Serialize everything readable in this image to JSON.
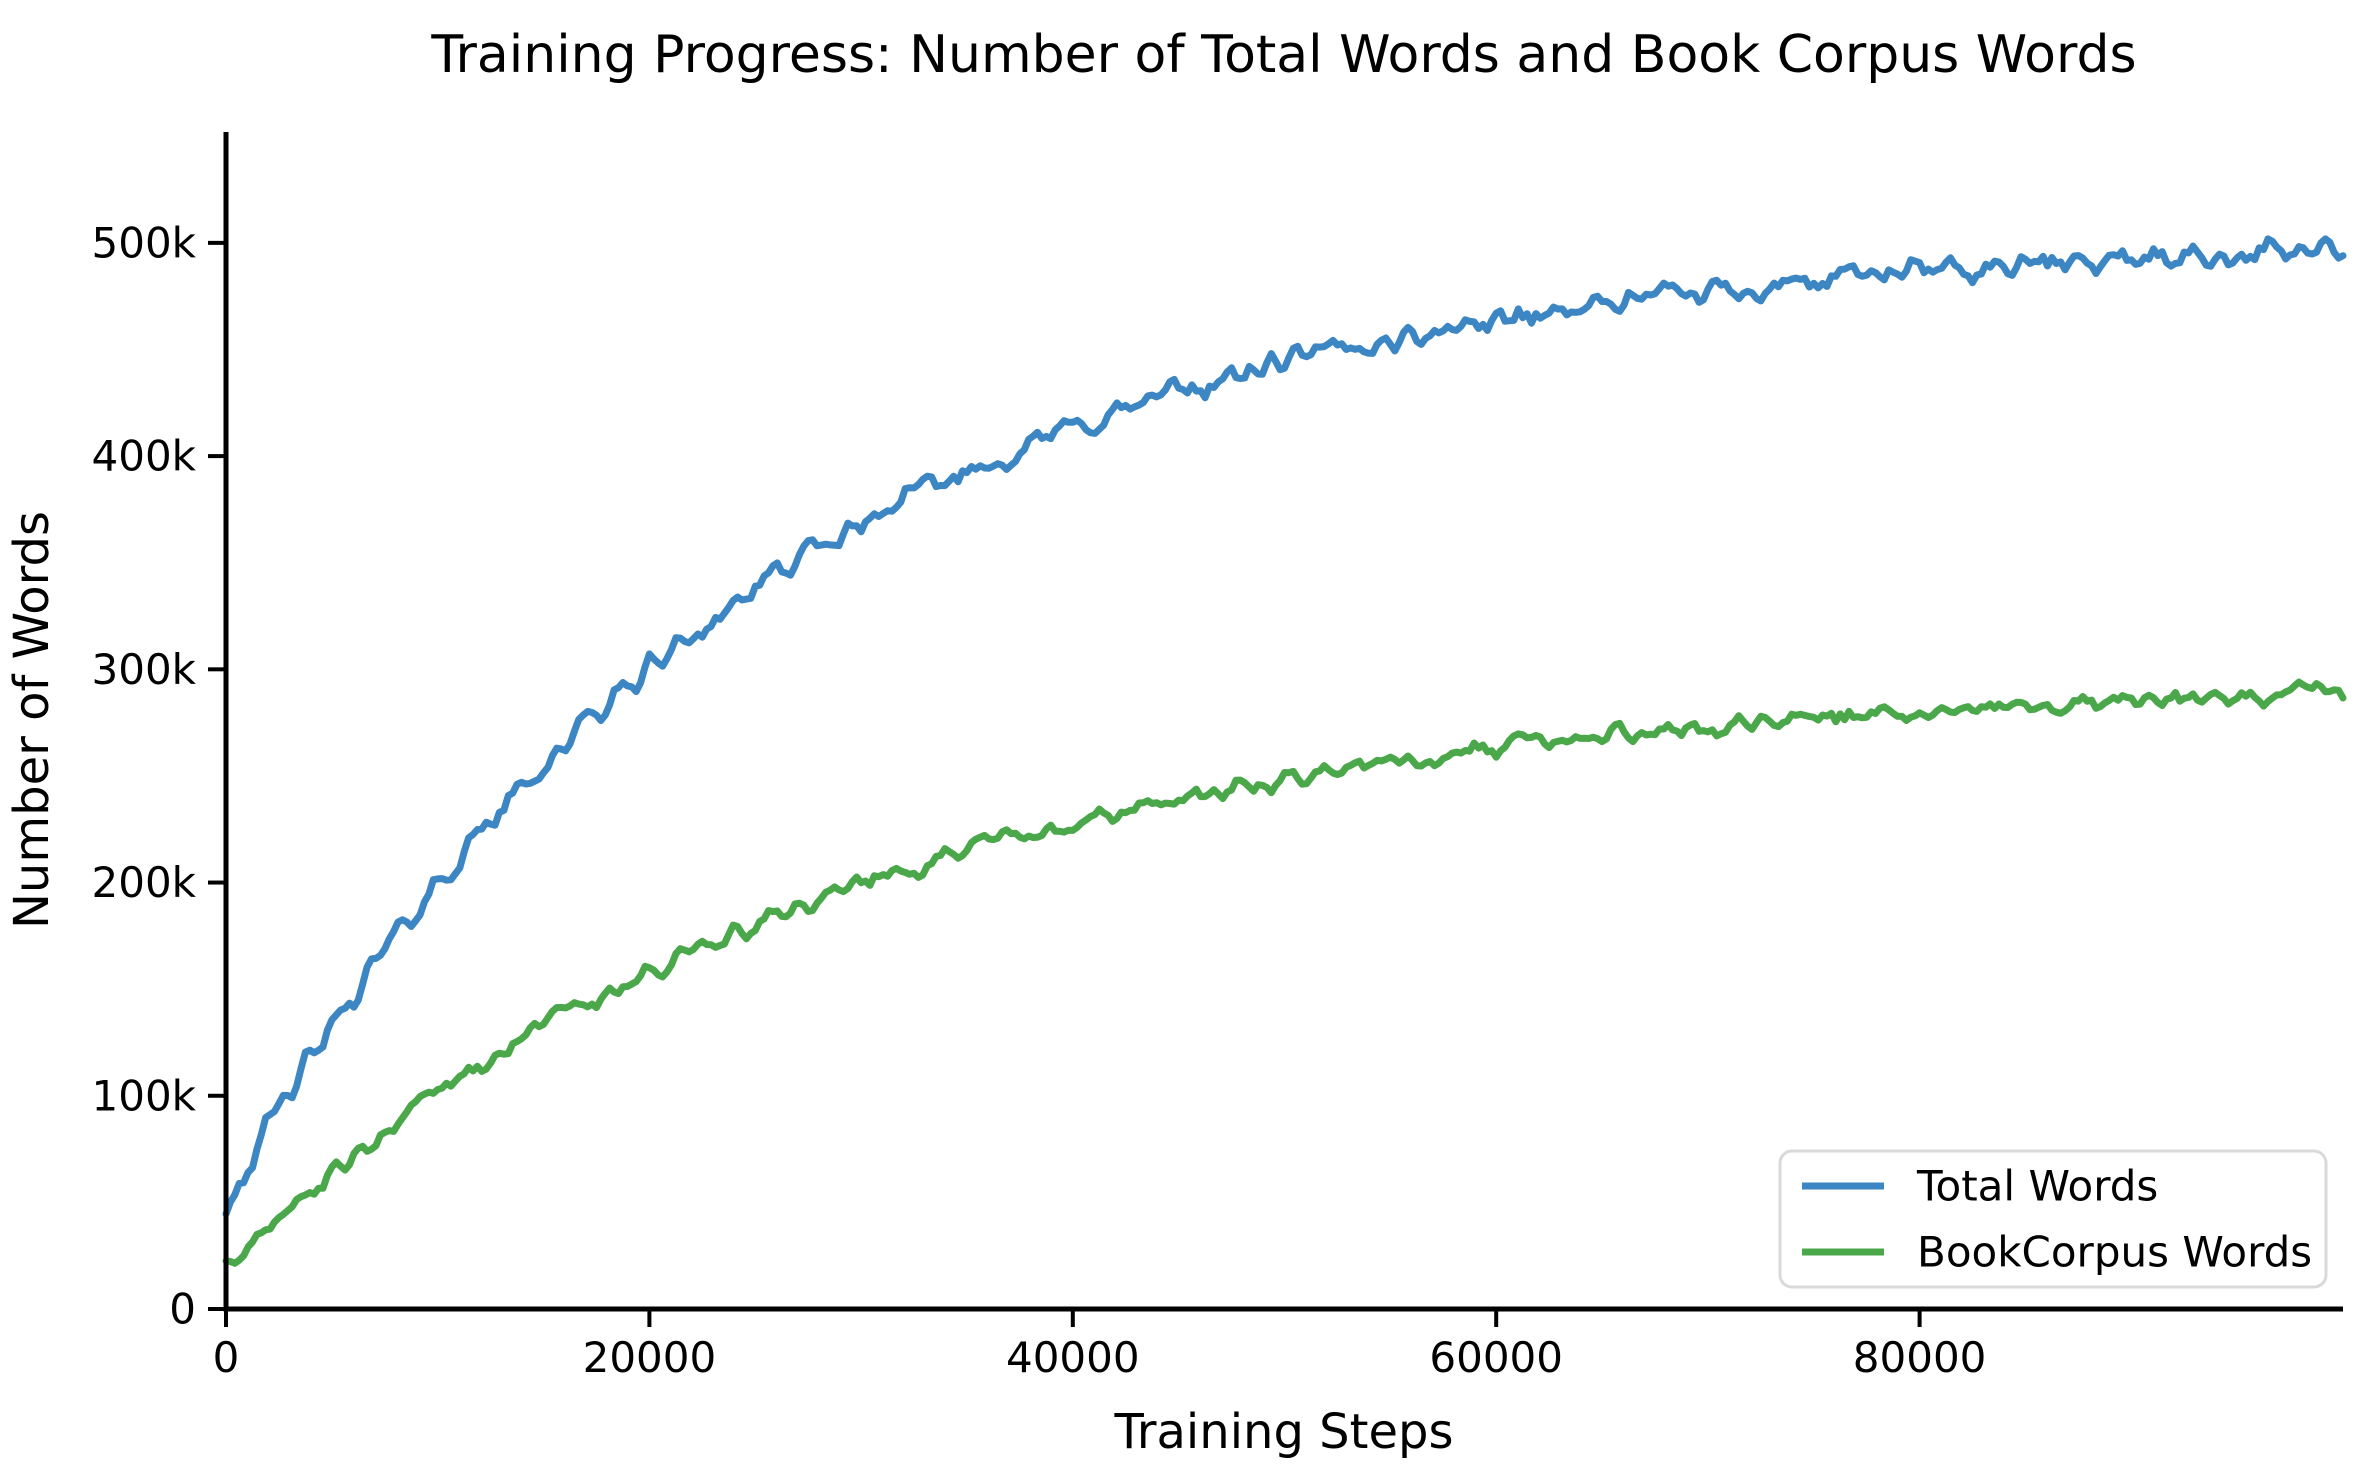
{
  "chart_data": {
    "type": "line",
    "title": "Training Progress: Number of Total Words and Book Corpus Words",
    "xlabel": "Training Steps",
    "ylabel": "Number of Words",
    "xlim": [
      0,
      100000
    ],
    "ylim": [
      0,
      552000
    ],
    "x_ticks": [
      {
        "value": 0,
        "label": "0"
      },
      {
        "value": 20000,
        "label": "20000"
      },
      {
        "value": 40000,
        "label": "40000"
      },
      {
        "value": 60000,
        "label": "60000"
      },
      {
        "value": 80000,
        "label": "80000"
      }
    ],
    "y_ticks": [
      {
        "value": 0,
        "label": "0"
      },
      {
        "value": 100000,
        "label": "100k"
      },
      {
        "value": 200000,
        "label": "200k"
      },
      {
        "value": 300000,
        "label": "300k"
      },
      {
        "value": 400000,
        "label": "400k"
      },
      {
        "value": 500000,
        "label": "500k"
      }
    ],
    "grid": false,
    "legend_position": "lower right",
    "x_step_between_anchors": 2500,
    "series": [
      {
        "name": "Total Words",
        "color": "#3c86c4",
        "noise_amplitude": 9000,
        "noise_seed": 42,
        "values": [
          50000,
          93300,
          132500,
          167900,
          200000,
          229000,
          255300,
          279100,
          300600,
          320000,
          337600,
          353500,
          368000,
          381000,
          392800,
          403500,
          413100,
          421900,
          429800,
          436900,
          443400,
          449300,
          454600,
          459400,
          463700,
          467700,
          471200,
          474400,
          477300,
          480000,
          482400,
          484500,
          486500,
          488200,
          489800,
          491300,
          492600,
          493800,
          494800,
          495800,
          496700
        ]
      },
      {
        "name": "BookCorpus Words",
        "color": "#4aa84a",
        "noise_amplitude": 7000,
        "noise_seed": 1337,
        "values": [
          20000,
          43000,
          64000,
          83400,
          101100,
          117300,
          132300,
          146000,
          158500,
          170000,
          180600,
          190300,
          199200,
          207400,
          214800,
          221700,
          228000,
          233800,
          239100,
          244000,
          248400,
          252500,
          256300,
          259700,
          262900,
          265800,
          268400,
          270900,
          273100,
          275200,
          277100,
          278800,
          280400,
          281800,
          283200,
          284400,
          285500,
          286500,
          287500,
          288400,
          289200
        ]
      }
    ]
  },
  "legend": {
    "items": [
      {
        "label": "Total Words",
        "color": "#3c86c4"
      },
      {
        "label": "BookCorpus Words",
        "color": "#4aa84a"
      }
    ]
  },
  "styles": {
    "axis_color": "#000000",
    "legend_border_color": "#d9d9d9",
    "background_color": "#ffffff"
  }
}
